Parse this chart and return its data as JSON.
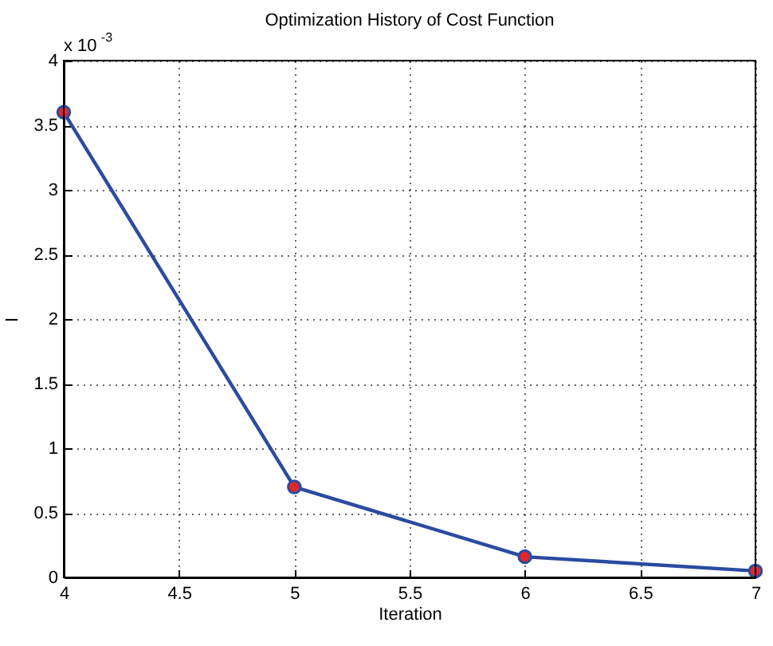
{
  "chart_data": {
    "type": "line",
    "title": "Optimization History of Cost Function",
    "xlabel": "Iteration",
    "ylabel": "I",
    "annotations": [
      "x 10$^{-3}$"
    ],
    "x": [
      4,
      5,
      6,
      7
    ],
    "series": [
      {
        "color": "#2b4ba0",
        "values": [
          3.6,
          0.7,
          0.16,
          0.05
        ]
      }
    ],
    "xlim": [
      4,
      7
    ],
    "xticks": [
      4,
      4.5,
      5,
      5.5,
      6,
      6.5,
      7
    ],
    "ylim": [
      0,
      4
    ],
    "yticks": [
      0,
      0.5,
      1,
      1.5,
      2,
      2.5,
      3,
      3.5,
      4
    ],
    "grid": true,
    "marker": "circle",
    "line_style": "solid"
  }
}
